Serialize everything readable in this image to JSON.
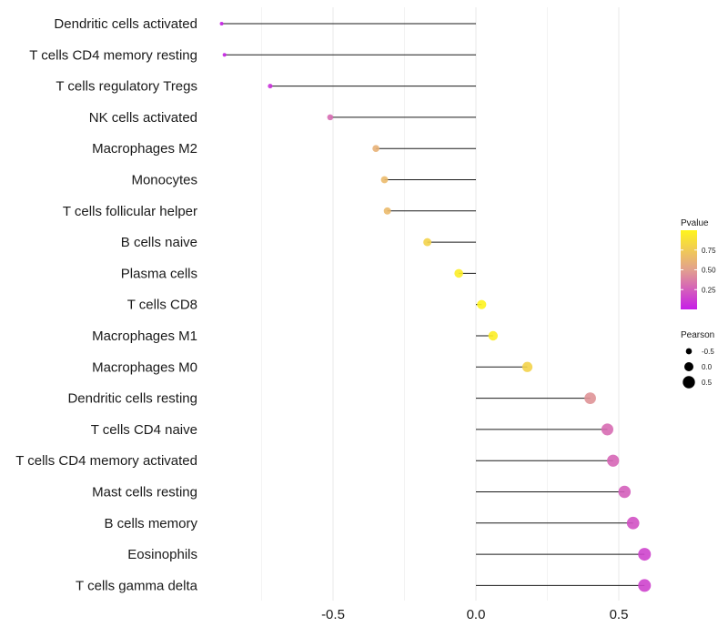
{
  "chart_data": {
    "type": "lollipop",
    "x_ticks": [
      -0.5,
      0.0,
      0.5
    ],
    "x_tick_labels": [
      "-0.5",
      "0.0",
      "0.5"
    ],
    "xlim": [
      -0.95,
      0.65
    ],
    "grid": true,
    "legend_position": "right",
    "categories": [
      "Dendritic cells activated",
      "T cells CD4 memory resting",
      "T cells regulatory  Tregs ",
      "NK cells activated",
      "Macrophages M2",
      "Monocytes",
      "T cells follicular helper",
      "B cells naive",
      "Plasma cells",
      "T cells CD8",
      "Macrophages M1",
      "Macrophages M0",
      "Dendritic cells resting",
      "T cells CD4 naive",
      "T cells CD4 memory activated",
      "Mast cells resting",
      "B cells memory",
      "Eosinophils",
      "T cells gamma delta"
    ],
    "pearson": [
      -0.89,
      -0.88,
      -0.72,
      -0.51,
      -0.35,
      -0.32,
      -0.31,
      -0.17,
      -0.06,
      0.02,
      0.06,
      0.18,
      0.4,
      0.46,
      0.48,
      0.52,
      0.55,
      0.59,
      0.59
    ],
    "pvalue": [
      0.01,
      0.02,
      0.08,
      0.3,
      0.6,
      0.65,
      0.65,
      0.8,
      0.95,
      0.99,
      0.95,
      0.8,
      0.45,
      0.3,
      0.28,
      0.25,
      0.2,
      0.15,
      0.15
    ],
    "colorbar": {
      "title": "Pvalue",
      "ticks": [
        0.25,
        0.5,
        0.75
      ],
      "tick_labels": [
        "0.25",
        "0.50",
        "0.75"
      ],
      "range": [
        0.0,
        1.0
      ],
      "low_color": "#c61de8",
      "mid_color": "#e2a08e",
      "high_color": "#fff51c"
    },
    "size_legend": {
      "title": "Pearson",
      "values": [
        -0.5,
        0.0,
        0.5
      ],
      "labels": [
        "-0.5",
        "0.0",
        "0.5"
      ]
    },
    "line_color": "#1a1a1a",
    "grid_color": "#ebebeb"
  }
}
